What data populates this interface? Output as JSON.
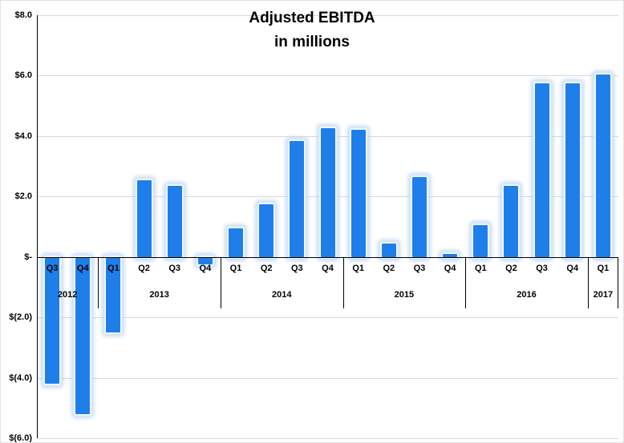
{
  "chart_data": {
    "type": "bar",
    "title": "Adjusted EBITDA",
    "subtitle": "in millions",
    "categories": [
      "Q3",
      "Q4",
      "Q1",
      "Q2",
      "Q3",
      "Q4",
      "Q1",
      "Q2",
      "Q3",
      "Q4",
      "Q1",
      "Q2",
      "Q3",
      "Q4",
      "Q1",
      "Q2",
      "Q3",
      "Q4",
      "Q1"
    ],
    "values": [
      -4.2,
      -5.2,
      -2.5,
      2.55,
      2.35,
      -0.25,
      0.95,
      1.75,
      3.85,
      4.25,
      4.2,
      0.45,
      2.65,
      0.1,
      1.05,
      2.35,
      5.75,
      5.75,
      6.05
    ],
    "year_groups": [
      {
        "label": "2012",
        "count": 2
      },
      {
        "label": "2013",
        "count": 4
      },
      {
        "label": "2014",
        "count": 4
      },
      {
        "label": "2015",
        "count": 4
      },
      {
        "label": "2016",
        "count": 4
      },
      {
        "label": "2017",
        "count": 1
      }
    ],
    "yticks": [
      {
        "label": "$8.0",
        "value": 8
      },
      {
        "label": "$6.0",
        "value": 6
      },
      {
        "label": "$4.0",
        "value": 4
      },
      {
        "label": "$2.0",
        "value": 2
      },
      {
        "label": "$-",
        "value": 0
      },
      {
        "label": "$(2.0)",
        "value": -2
      },
      {
        "label": "$(4.0)",
        "value": -4
      },
      {
        "label": "$(6.0)",
        "value": -6
      }
    ],
    "ylim": [
      -6,
      8
    ],
    "grid": true,
    "legend": "none",
    "bar_color": "#1E7FEB",
    "glow_color": "#AECDF0",
    "grid_color": "#D9D9D9",
    "axis_color": "#000000",
    "xlabel": "",
    "ylabel": ""
  }
}
